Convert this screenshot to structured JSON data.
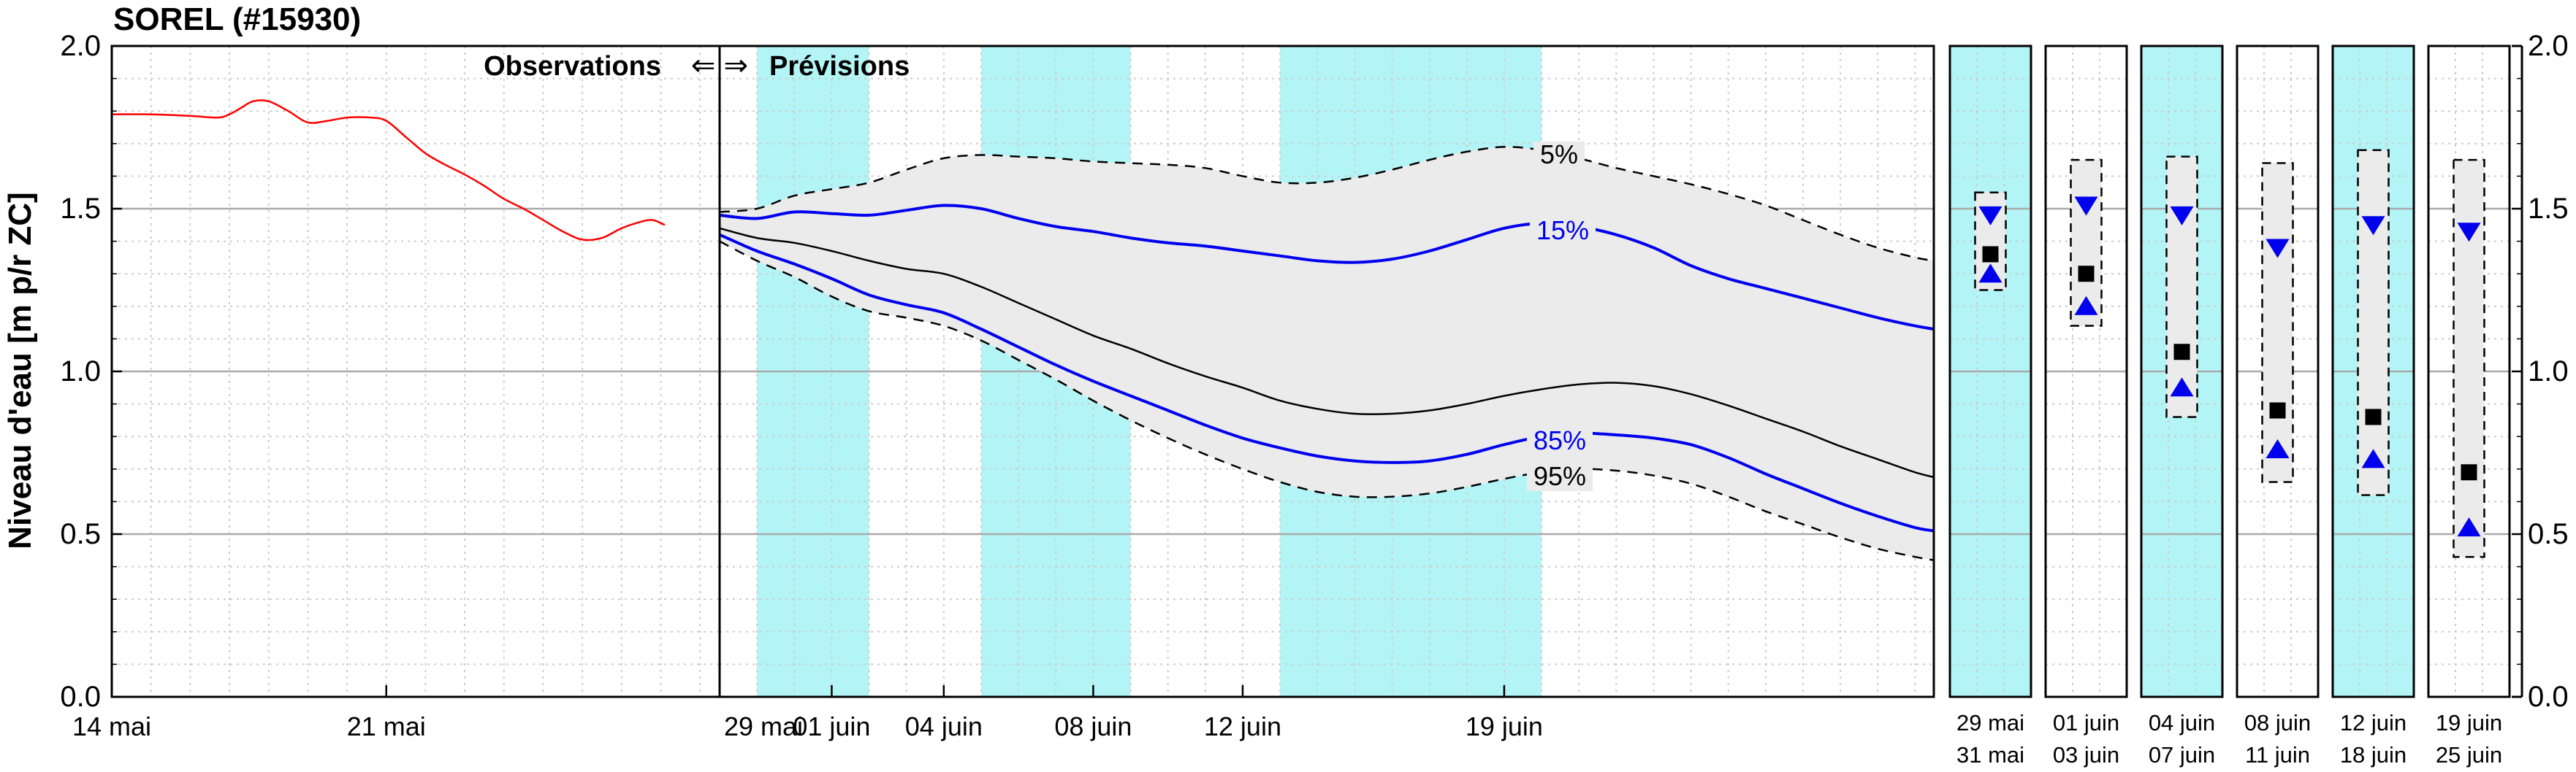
{
  "colors": {
    "weekend_band": "#b3f5f6",
    "envelope_fill": "#ebebeb",
    "observed": "#ff0000",
    "quantile_15_85": "#0000ee",
    "median": "#000000",
    "envelope_edge": "#000000",
    "grid_minor": "#cccccc",
    "grid_major": "#aaaaaa"
  },
  "chart_data": [
    {
      "type": "line",
      "title": "SOREL (#15930)",
      "ylabel": "Niveau d'eau [m p/r ZC]",
      "ylim": [
        0.0,
        2.0
      ],
      "yticks": [
        "0.0",
        "0.5",
        "1.0",
        "1.5",
        "2.0"
      ],
      "grid": true,
      "legend": "none",
      "observations": {
        "section_label": "Observations",
        "x_range_days": [
          0,
          15.5
        ],
        "x_tick_labels": [
          {
            "day": 0,
            "label": "14 mai"
          },
          {
            "day": 7,
            "label": "21 mai"
          }
        ],
        "series": [
          {
            "key": "observed",
            "x": [
              0,
              1,
              2,
              2.7,
              3,
              3.3,
              3.6,
              4,
              4.5,
              5,
              5.5,
              6,
              6.6,
              7,
              7.5,
              8,
              8.5,
              9,
              9.5,
              10,
              10.5,
              11,
              11.5,
              12,
              12.5,
              13,
              13.5,
              13.8,
              14.1
            ],
            "y": [
              1.79,
              1.79,
              1.785,
              1.78,
              1.79,
              1.81,
              1.83,
              1.83,
              1.8,
              1.765,
              1.77,
              1.78,
              1.78,
              1.77,
              1.72,
              1.67,
              1.635,
              1.605,
              1.57,
              1.53,
              1.5,
              1.465,
              1.43,
              1.405,
              1.41,
              1.44,
              1.46,
              1.465,
              1.45
            ]
          }
        ]
      },
      "forecast": {
        "section_label": "Prévisions",
        "arrows": "⇐ ⇒",
        "x_start_label": "29 mai",
        "x_range_days": [
          0,
          32.5
        ],
        "x_tick_labels": [
          {
            "day": 0,
            "label": "29 mai"
          },
          {
            "day": 3,
            "label": "01 juin"
          },
          {
            "day": 6,
            "label": "04 juin"
          },
          {
            "day": 10,
            "label": "08 juin"
          },
          {
            "day": 14,
            "label": "12 juin"
          },
          {
            "day": 21,
            "label": "19 juin"
          }
        ],
        "weekend_bands": [
          [
            1,
            4
          ],
          [
            7,
            11
          ],
          [
            15,
            22
          ]
        ],
        "x": [
          0,
          1,
          2,
          3,
          4,
          5,
          6,
          7,
          8,
          9,
          10,
          11,
          12,
          13,
          14,
          15,
          16,
          17,
          18,
          19,
          20,
          21,
          22,
          23,
          24,
          25,
          26,
          27,
          28,
          29,
          30,
          31,
          32,
          32.5
        ],
        "series": [
          {
            "name": "5%",
            "key": "p05",
            "y": [
              1.49,
              1.5,
              1.54,
              1.56,
              1.58,
              1.62,
              1.655,
              1.665,
              1.66,
              1.655,
              1.645,
              1.64,
              1.635,
              1.625,
              1.6,
              1.58,
              1.58,
              1.595,
              1.62,
              1.65,
              1.675,
              1.69,
              1.68,
              1.655,
              1.625,
              1.6,
              1.575,
              1.545,
              1.51,
              1.465,
              1.42,
              1.38,
              1.35,
              1.34
            ]
          },
          {
            "name": "15%",
            "key": "p15",
            "y": [
              1.48,
              1.47,
              1.49,
              1.485,
              1.48,
              1.495,
              1.51,
              1.5,
              1.47,
              1.445,
              1.43,
              1.41,
              1.395,
              1.385,
              1.37,
              1.355,
              1.34,
              1.335,
              1.345,
              1.37,
              1.405,
              1.44,
              1.455,
              1.445,
              1.42,
              1.38,
              1.325,
              1.285,
              1.255,
              1.225,
              1.195,
              1.165,
              1.14,
              1.13
            ]
          },
          {
            "name": "",
            "key": "median",
            "y": [
              1.44,
              1.41,
              1.395,
              1.37,
              1.34,
              1.315,
              1.3,
              1.26,
              1.21,
              1.16,
              1.11,
              1.07,
              1.025,
              0.985,
              0.95,
              0.91,
              0.885,
              0.87,
              0.87,
              0.88,
              0.9,
              0.925,
              0.945,
              0.96,
              0.965,
              0.955,
              0.93,
              0.895,
              0.855,
              0.815,
              0.77,
              0.73,
              0.69,
              0.675
            ]
          },
          {
            "name": "85%",
            "key": "p85",
            "y": [
              1.42,
              1.37,
              1.33,
              1.285,
              1.235,
              1.205,
              1.18,
              1.13,
              1.075,
              1.02,
              0.97,
              0.925,
              0.88,
              0.835,
              0.795,
              0.765,
              0.74,
              0.725,
              0.72,
              0.725,
              0.745,
              0.775,
              0.8,
              0.81,
              0.805,
              0.795,
              0.775,
              0.735,
              0.685,
              0.64,
              0.595,
              0.555,
              0.52,
              0.51
            ]
          },
          {
            "name": "95%",
            "key": "p95",
            "y": [
              1.4,
              1.34,
              1.29,
              1.23,
              1.185,
              1.165,
              1.14,
              1.095,
              1.035,
              0.975,
              0.91,
              0.85,
              0.795,
              0.745,
              0.7,
              0.66,
              0.63,
              0.615,
              0.615,
              0.625,
              0.645,
              0.67,
              0.69,
              0.7,
              0.695,
              0.68,
              0.655,
              0.615,
              0.57,
              0.53,
              0.49,
              0.455,
              0.43,
              0.42
            ]
          }
        ],
        "labels": [
          {
            "series": "p05",
            "text": "5%"
          },
          {
            "series": "p15",
            "text": "15%"
          },
          {
            "series": "p85",
            "text": "85%"
          },
          {
            "series": "p95",
            "text": "95%"
          }
        ]
      }
    },
    {
      "type": "box",
      "ylim": [
        0.0,
        2.0
      ],
      "yticks": [
        "0.0",
        "0.5",
        "1.0",
        "1.5",
        "2.0"
      ],
      "periods": [
        {
          "top": "29  mai",
          "bottom": "31  mai",
          "weekend": true,
          "p05": 1.55,
          "p15": 1.48,
          "median": 1.36,
          "p85": 1.3,
          "p95": 1.25
        },
        {
          "top": "01  juin",
          "bottom": "03  juin",
          "weekend": false,
          "p05": 1.65,
          "p15": 1.51,
          "median": 1.3,
          "p85": 1.2,
          "p95": 1.14
        },
        {
          "top": "04  juin",
          "bottom": "07  juin",
          "weekend": true,
          "p05": 1.66,
          "p15": 1.48,
          "median": 1.06,
          "p85": 0.95,
          "p95": 0.86
        },
        {
          "top": "08  juin",
          "bottom": "11  juin",
          "weekend": false,
          "p05": 1.64,
          "p15": 1.38,
          "median": 0.88,
          "p85": 0.76,
          "p95": 0.66
        },
        {
          "top": "12  juin",
          "bottom": "18  juin",
          "weekend": true,
          "p05": 1.68,
          "p15": 1.45,
          "median": 0.86,
          "p85": 0.73,
          "p95": 0.62
        },
        {
          "top": "19  juin",
          "bottom": "25  juin",
          "weekend": false,
          "p05": 1.65,
          "p15": 1.43,
          "median": 0.69,
          "p85": 0.52,
          "p95": 0.43
        }
      ]
    }
  ]
}
